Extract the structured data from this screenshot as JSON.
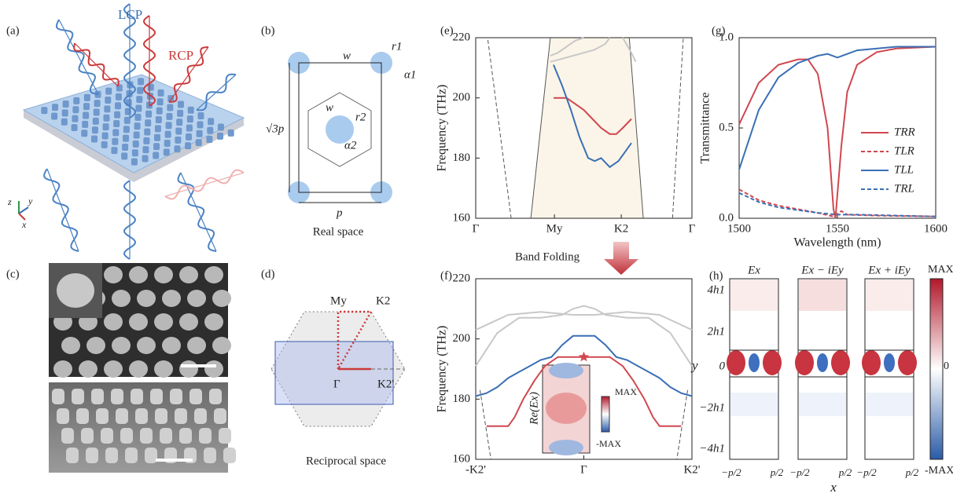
{
  "panels": {
    "a": {
      "label": "(a)",
      "lcp": "LCP",
      "rcp": "RCP",
      "axes": [
        "z",
        "y",
        "x"
      ]
    },
    "b": {
      "label": "(b)",
      "annotations": [
        "w",
        "r1",
        "α1",
        "w",
        "r2",
        "α2",
        "√3p",
        "p"
      ],
      "caption": "Real space"
    },
    "c": {
      "label": "(c)"
    },
    "d": {
      "label": "(d)",
      "points": [
        "My",
        "K2",
        "Γ",
        "K2'"
      ],
      "caption": "Reciprocal space"
    },
    "h": {
      "label": "(h)",
      "titles": [
        "Ex",
        "Ex − iEy",
        "Ex + iEy"
      ],
      "yticks": [
        "4h1",
        "2h1",
        "0",
        "−2h1",
        "−4h1"
      ],
      "xtick_left": "−p/2",
      "xtick_right": "p/2",
      "x_label": "x",
      "y_label": "y",
      "colorbar": [
        "MAX",
        "0",
        "-MAX"
      ]
    }
  },
  "band_folding": "Band Folding",
  "chart_data": [
    {
      "type": "line",
      "label": "(e)",
      "y_label": "Frequency (THz)",
      "xlim": [
        0,
        1
      ],
      "xticks": [
        {
          "value": 0,
          "label": "Γ"
        },
        {
          "value": 0.364,
          "label": "My"
        },
        {
          "value": 0.673,
          "label": "K2"
        },
        {
          "value": 1,
          "label": "Γ"
        }
      ],
      "ylim": [
        160,
        220
      ],
      "yticks": [
        160,
        180,
        200,
        220
      ],
      "series": [
        {
          "color": "#555555",
          "dash": false,
          "x": [
            0.255,
            0.345
          ],
          "values": [
            160,
            220
          ]
        },
        {
          "color": "#555555",
          "dash": false,
          "x": [
            0.775,
            0.71
          ],
          "values": [
            160,
            220
          ]
        },
        {
          "color": "#555555",
          "dash": true,
          "x": [
            0.164,
            0.055
          ],
          "values": [
            160,
            220
          ]
        },
        {
          "color": "#555555",
          "dash": true,
          "x": [
            0.91,
            0.96
          ],
          "values": [
            160,
            220
          ]
        },
        {
          "color": "#c8c8c8",
          "dash": false,
          "x": [
            0.345,
            0.38,
            0.42,
            0.46,
            0.5
          ],
          "values": [
            214,
            215,
            217,
            219,
            220
          ]
        },
        {
          "color": "#c8c8c8",
          "dash": false,
          "x": [
            0.345,
            0.4,
            0.45,
            0.5,
            0.55,
            0.6,
            0.62
          ],
          "values": [
            212,
            213,
            214,
            215,
            216,
            218,
            220
          ]
        },
        {
          "color": "#c8c8c8",
          "dash": false,
          "x": [
            0.68,
            0.72,
            0.74
          ],
          "values": [
            220,
            215,
            212
          ]
        },
        {
          "color": "#d0474f",
          "dash": false,
          "x": [
            0.36,
            0.42,
            0.46,
            0.5,
            0.54,
            0.58,
            0.62,
            0.65,
            0.68,
            0.72
          ],
          "values": [
            200,
            200,
            198,
            196,
            193,
            190,
            188,
            188,
            190,
            193
          ]
        },
        {
          "color": "#3a6fb5",
          "dash": false,
          "x": [
            0.36,
            0.4,
            0.44,
            0.48,
            0.52,
            0.55,
            0.58,
            0.62,
            0.66,
            0.69,
            0.72
          ],
          "values": [
            211,
            204,
            196,
            187,
            180,
            179,
            180,
            177,
            179,
            182,
            185
          ]
        }
      ]
    },
    {
      "type": "line",
      "label": "(f)",
      "y_label": "Frequency (THz)",
      "xlim": [
        0,
        1
      ],
      "xticks": [
        {
          "value": 0,
          "label": "-K2'"
        },
        {
          "value": 0.5,
          "label": "Γ"
        },
        {
          "value": 1,
          "label": "K2'"
        }
      ],
      "ylim": [
        160,
        220
      ],
      "yticks": [
        160,
        180,
        200,
        220
      ],
      "series": [
        {
          "color": "#555555",
          "dash": true,
          "x": [
            0.02,
            0.07
          ],
          "values": [
            183,
            160
          ]
        },
        {
          "color": "#555555",
          "dash": true,
          "x": [
            0.98,
            0.93
          ],
          "values": [
            183,
            160
          ]
        },
        {
          "color": "#c8c8c8",
          "dash": false,
          "x": [
            0,
            0.1,
            0.2,
            0.3,
            0.4,
            0.45,
            0.5,
            0.55,
            0.6,
            0.7,
            0.8,
            0.9,
            1
          ],
          "values": [
            191,
            202,
            207,
            207,
            208,
            210,
            211,
            210,
            208,
            207,
            207,
            202,
            191
          ]
        },
        {
          "color": "#c8c8c8",
          "dash": false,
          "x": [
            0,
            0.15,
            0.3,
            0.45,
            0.5,
            0.55,
            0.7,
            0.85,
            1
          ],
          "values": [
            203,
            208,
            209,
            208,
            208,
            208,
            209,
            208,
            203
          ]
        },
        {
          "color": "#3a6fb5",
          "dash": false,
          "x": [
            0,
            0.05,
            0.1,
            0.15,
            0.2,
            0.25,
            0.3,
            0.35,
            0.4,
            0.45,
            0.5,
            0.55,
            0.6,
            0.65,
            0.7,
            0.75,
            0.8,
            0.85,
            0.9,
            0.95,
            1
          ],
          "values": [
            181,
            182,
            184,
            187,
            189,
            191,
            193,
            194,
            198,
            201,
            201,
            201,
            198,
            194,
            193,
            191,
            189,
            187,
            184,
            182,
            181
          ]
        },
        {
          "color": "#d0474f",
          "dash": false,
          "x": [
            0.05,
            0.1,
            0.15,
            0.18,
            0.22,
            0.27,
            0.32,
            0.38,
            0.45,
            0.5,
            0.55,
            0.62,
            0.68,
            0.73,
            0.78,
            0.82,
            0.85,
            0.9,
            0.95
          ],
          "values": [
            171,
            171,
            171,
            174,
            180,
            186,
            191,
            194,
            194,
            194,
            194,
            194,
            191,
            186,
            180,
            174,
            171,
            171,
            171
          ]
        }
      ],
      "star": {
        "x": 0.5,
        "y": 194,
        "color": "#d0474f"
      },
      "inset_label": "Re(Ex)",
      "inset_max": "MAX",
      "inset_min": "-MAX"
    },
    {
      "type": "line",
      "label": "(g)",
      "y_label": "Transmittance",
      "x_label": "Wavelength (nm)",
      "xlim": [
        1500,
        1600
      ],
      "xticks": [
        1500,
        1550,
        1600
      ],
      "ylim": [
        0,
        1
      ],
      "yticks": [
        {
          "value": 0,
          "label": "0.0"
        },
        {
          "value": 0.5,
          "label": "0.5"
        },
        {
          "value": 1,
          "label": "1.0"
        }
      ],
      "legend": "center right",
      "series": [
        {
          "name": "TRR",
          "color": "#d0474f",
          "dash": false,
          "x": [
            1500,
            1510,
            1520,
            1530,
            1535,
            1540,
            1545,
            1548,
            1549,
            1552,
            1555,
            1560,
            1570,
            1580,
            1600
          ],
          "values": [
            0.52,
            0.75,
            0.85,
            0.88,
            0.88,
            0.8,
            0.5,
            0.05,
            0.0,
            0.4,
            0.7,
            0.85,
            0.92,
            0.94,
            0.95
          ]
        },
        {
          "name": "TLR",
          "color": "#d0474f",
          "dash": true,
          "x": [
            1500,
            1510,
            1520,
            1530,
            1540,
            1548,
            1552,
            1555,
            1570,
            1600
          ],
          "values": [
            0.16,
            0.1,
            0.07,
            0.05,
            0.03,
            0.01,
            0.04,
            0.02,
            0.015,
            0.01
          ]
        },
        {
          "name": "TLL",
          "color": "#3a6fb5",
          "dash": false,
          "x": [
            1500,
            1510,
            1520,
            1530,
            1540,
            1545,
            1550,
            1555,
            1560,
            1580,
            1600
          ],
          "values": [
            0.27,
            0.6,
            0.78,
            0.86,
            0.9,
            0.91,
            0.89,
            0.91,
            0.93,
            0.95,
            0.95
          ]
        },
        {
          "name": "TRL",
          "color": "#3a6fb5",
          "dash": true,
          "x": [
            1500,
            1510,
            1520,
            1530,
            1540,
            1550,
            1560,
            1580,
            1600
          ],
          "values": [
            0.14,
            0.09,
            0.06,
            0.045,
            0.03,
            0.02,
            0.02,
            0.015,
            0.01
          ]
        }
      ]
    }
  ]
}
